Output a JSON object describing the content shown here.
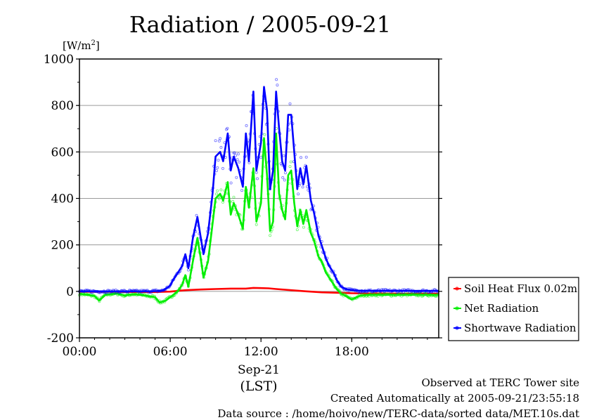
{
  "chart_data": {
    "type": "line",
    "title": "Radiation / 2005-09-21",
    "ylabel_unit": "[W/m",
    "ylabel_sup": "2",
    "ylabel_tail": "]",
    "xlabel_date": "Sep-21",
    "xlabel_tz": "(LST)",
    "ylim": [
      -200,
      1000
    ],
    "xlim": [
      0,
      23.75
    ],
    "yticks": [
      -200,
      0,
      200,
      400,
      600,
      800,
      1000
    ],
    "ytick_labels": [
      "-200",
      "0",
      "200",
      "400",
      "600",
      "800",
      "1000"
    ],
    "xticks": [
      0,
      6,
      12,
      18
    ],
    "xtick_labels": [
      "00:00",
      "06:00",
      "12:00",
      "18:00"
    ],
    "grid": true,
    "legend_position": "right",
    "series": [
      {
        "name": "Soil Heat Flux 0.02m",
        "color": "#ff0000",
        "x": [
          0,
          2,
          4,
          5,
          5.5,
          6,
          6.5,
          7,
          8,
          9,
          10,
          11,
          11.5,
          12,
          12.5,
          13,
          14,
          15,
          16,
          17,
          18,
          19,
          20,
          21,
          22,
          23,
          23.75
        ],
        "y": [
          -2,
          -2,
          -3,
          -3,
          -2,
          -1,
          2,
          5,
          8,
          10,
          12,
          12,
          15,
          14,
          13,
          10,
          5,
          0,
          -4,
          -6,
          -8,
          -9,
          -9,
          -10,
          -10,
          -10,
          -10
        ]
      },
      {
        "name": "Net Radiation",
        "color": "#00ee00",
        "x": [
          0,
          0.5,
          1,
          1.3,
          1.7,
          2,
          2.5,
          3,
          3.5,
          4,
          4.5,
          5,
          5.3,
          5.7,
          6,
          6.2,
          6.5,
          6.8,
          7,
          7.2,
          7.5,
          7.8,
          8,
          8.2,
          8.5,
          8.8,
          9,
          9.3,
          9.5,
          9.8,
          10,
          10.2,
          10.5,
          10.8,
          11,
          11.2,
          11.5,
          11.7,
          12,
          12.2,
          12.4,
          12.6,
          12.8,
          13,
          13.2,
          13.4,
          13.6,
          13.8,
          14,
          14.2,
          14.4,
          14.6,
          14.8,
          15,
          15.3,
          15.5,
          15.8,
          16,
          16.3,
          16.5,
          16.8,
          17,
          17.3,
          17.6,
          18,
          18.5,
          19,
          20,
          21,
          22,
          23,
          23.75
        ],
        "y": [
          -10,
          -15,
          -20,
          -40,
          -15,
          -12,
          -10,
          -18,
          -12,
          -15,
          -20,
          -25,
          -48,
          -40,
          -25,
          -15,
          0,
          30,
          70,
          20,
          130,
          230,
          150,
          60,
          130,
          290,
          400,
          420,
          390,
          470,
          330,
          380,
          330,
          270,
          450,
          360,
          530,
          300,
          380,
          660,
          500,
          260,
          300,
          680,
          420,
          350,
          310,
          500,
          520,
          380,
          280,
          350,
          290,
          350,
          250,
          220,
          150,
          130,
          80,
          60,
          30,
          10,
          -10,
          -20,
          -35,
          -20,
          -15,
          -15,
          -15,
          -15,
          -15,
          -15
        ]
      },
      {
        "name": "Shortwave Radiation",
        "color": "#0000ff",
        "x": [
          0,
          1,
          2,
          3,
          4,
          5,
          5.5,
          5.8,
          6,
          6.2,
          6.5,
          6.8,
          7,
          7.2,
          7.5,
          7.8,
          8,
          8.2,
          8.5,
          8.8,
          9,
          9.3,
          9.5,
          9.8,
          10,
          10.2,
          10.5,
          10.8,
          11,
          11.2,
          11.5,
          11.7,
          12,
          12.2,
          12.4,
          12.6,
          12.8,
          13,
          13.2,
          13.4,
          13.6,
          13.8,
          14,
          14.2,
          14.4,
          14.6,
          14.8,
          15,
          15.3,
          15.5,
          15.8,
          16,
          16.3,
          16.5,
          16.8,
          17,
          17.3,
          17.6,
          18,
          18.5,
          19,
          20,
          21,
          22,
          23,
          23.75
        ],
        "y": [
          0,
          0,
          0,
          0,
          0,
          1,
          3,
          15,
          25,
          50,
          80,
          110,
          160,
          100,
          230,
          320,
          240,
          160,
          250,
          420,
          580,
          600,
          560,
          680,
          520,
          580,
          530,
          450,
          680,
          560,
          860,
          520,
          640,
          880,
          780,
          440,
          520,
          860,
          700,
          560,
          520,
          760,
          760,
          600,
          440,
          530,
          460,
          540,
          390,
          340,
          240,
          200,
          140,
          110,
          80,
          50,
          20,
          10,
          5,
          3,
          2,
          2,
          2,
          2,
          2,
          2
        ]
      }
    ]
  },
  "footer": {
    "line1": "Observed at TERC Tower site",
    "line2": "Created Automatically at 2005-09-21/23:55:18",
    "line3": "Data source : /home/hoivo/new/TERC-data/sorted  data/MET.10s.dat"
  }
}
